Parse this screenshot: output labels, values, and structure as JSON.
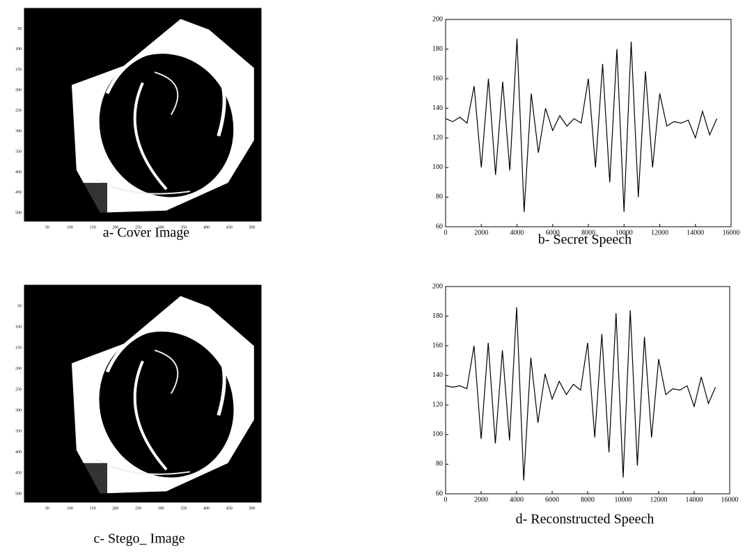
{
  "chart_data": [
    {
      "type": "image",
      "caption": "a- Cover Image",
      "xlim": [
        0,
        520
      ],
      "ylim": [
        0,
        520
      ],
      "xticks": [
        50,
        100,
        150,
        200,
        250,
        300,
        350,
        400,
        450,
        500
      ],
      "yticks": [
        50,
        100,
        150,
        200,
        250,
        300,
        350,
        400,
        450,
        500
      ]
    },
    {
      "type": "line",
      "caption": "b- Secret Speech",
      "xlim": [
        0,
        16000
      ],
      "ylim": [
        60,
        200
      ],
      "xticks": [
        0,
        2000,
        4000,
        6000,
        8000,
        10000,
        12000,
        14000,
        16000
      ],
      "yticks": [
        60,
        80,
        100,
        120,
        140,
        160,
        180,
        200
      ],
      "color": "#000000",
      "x": [
        0,
        400,
        800,
        1200,
        1600,
        2000,
        2400,
        2800,
        3200,
        3600,
        4000,
        4400,
        4800,
        5200,
        5600,
        6000,
        6400,
        6800,
        7200,
        7600,
        8000,
        8400,
        8800,
        9200,
        9600,
        10000,
        10400,
        10800,
        11200,
        11600,
        12000,
        12400,
        12800,
        13200,
        13600,
        14000,
        14400,
        14800,
        15200
      ],
      "values": [
        133,
        131,
        134,
        130,
        155,
        100,
        160,
        95,
        158,
        98,
        187,
        70,
        150,
        110,
        140,
        125,
        135,
        128,
        133,
        130,
        160,
        100,
        170,
        90,
        180,
        70,
        185,
        80,
        165,
        100,
        150,
        128,
        131,
        130,
        132,
        120,
        138,
        122,
        133
      ]
    },
    {
      "type": "image",
      "caption": "c- Stego_ Image",
      "xlim": [
        0,
        520
      ],
      "ylim": [
        0,
        520
      ],
      "xticks": [
        50,
        100,
        150,
        200,
        250,
        300,
        350,
        400,
        450,
        500
      ],
      "yticks": [
        50,
        100,
        150,
        200,
        250,
        300,
        350,
        400,
        450,
        500
      ]
    },
    {
      "type": "line",
      "caption": "d- Reconstructed Speech",
      "xlim": [
        0,
        16000
      ],
      "ylim": [
        60,
        200
      ],
      "xticks": [
        0,
        2000,
        4000,
        6000,
        8000,
        10000,
        12000,
        14000,
        16000
      ],
      "yticks": [
        60,
        80,
        100,
        120,
        140,
        160,
        180,
        200
      ],
      "color": "#000000",
      "x": [
        0,
        400,
        800,
        1200,
        1600,
        2000,
        2400,
        2800,
        3200,
        3600,
        4000,
        4400,
        4800,
        5200,
        5600,
        6000,
        6400,
        6800,
        7200,
        7600,
        8000,
        8400,
        8800,
        9200,
        9600,
        10000,
        10400,
        10800,
        11200,
        11600,
        12000,
        12400,
        12800,
        13200,
        13600,
        14000,
        14400,
        14800,
        15200
      ],
      "values": [
        133,
        132,
        133,
        131,
        160,
        97,
        162,
        94,
        157,
        96,
        186,
        69,
        152,
        108,
        141,
        124,
        136,
        127,
        134,
        130,
        162,
        98,
        168,
        88,
        182,
        71,
        184,
        79,
        166,
        98,
        151,
        127,
        131,
        130,
        133,
        119,
        139,
        121,
        132
      ]
    }
  ]
}
